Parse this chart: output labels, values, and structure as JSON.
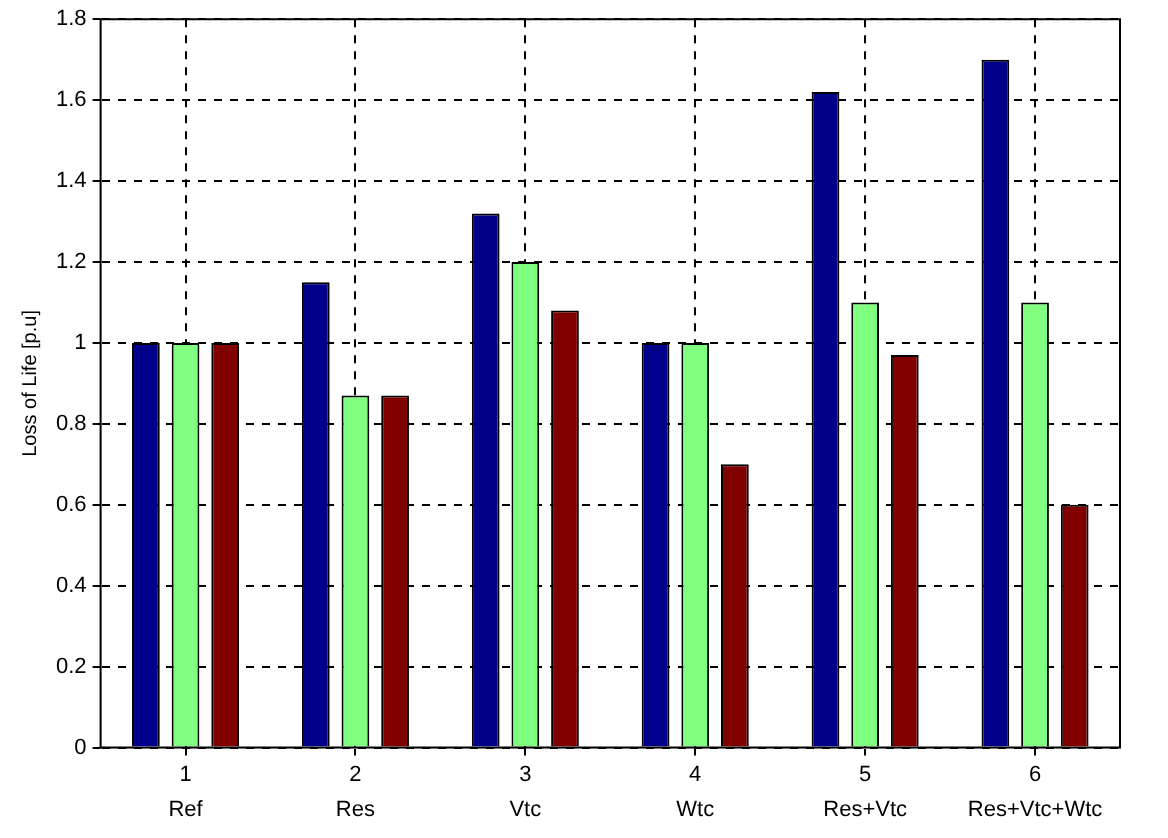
{
  "chart_data": {
    "type": "bar",
    "ylabel": "Loss of Life [p.u]",
    "categories": [
      "1",
      "2",
      "3",
      "4",
      "5",
      "6"
    ],
    "series": [
      {
        "color": "#00008b",
        "values": [
          1,
          1.15,
          1.32,
          1,
          1.62,
          1.7
        ]
      },
      {
        "color": "#80ff80",
        "values": [
          1,
          0.87,
          1.2,
          1,
          1.1,
          1.1
        ]
      },
      {
        "color": "#800000",
        "values": [
          1,
          0.87,
          1.08,
          0.7,
          0.97,
          0.6
        ]
      }
    ],
    "ylim": [
      0,
      1.8
    ],
    "yticks": [
      0,
      0.2,
      0.4,
      0.6,
      0.8,
      1,
      1.2,
      1.4,
      1.6,
      1.8
    ],
    "grid": true,
    "legend": false,
    "annotations": [
      "Ref",
      "Res",
      "Vtc",
      "Wtc",
      "Res+Vtc",
      "Res+Vtc+Wtc"
    ]
  }
}
